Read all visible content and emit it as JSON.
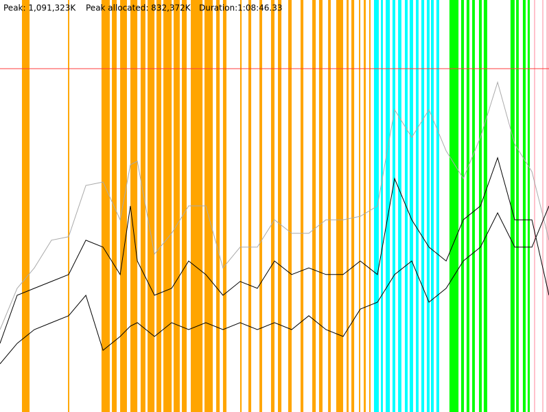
{
  "chart_data": {
    "type": "line",
    "peak_label": "Peak: 1,091,323K",
    "peak_allocated_label": "Peak allocated: 832,372K",
    "duration_label": "Duration:1:08:46.33",
    "peak": 1091323,
    "peak_color": "#ff3b3b",
    "xlim": [
      0,
      4126.33
    ],
    "ylim": [
      0,
      1309588
    ],
    "x": [
      0,
      129,
      258,
      387,
      516,
      645,
      774,
      903,
      980,
      1032,
      1161,
      1290,
      1418,
      1547,
      1676,
      1805,
      1934,
      2063,
      2192,
      2321,
      2450,
      2579,
      2708,
      2837,
      2966,
      3095,
      3224,
      3353,
      3482,
      3611,
      3740,
      3869,
      3998,
      4126.33
    ],
    "series": [
      {
        "color": "#aaaaaa",
        "values": [
          262000,
          393000,
          458000,
          546000,
          557000,
          720000,
          731000,
          611000,
          786000,
          797000,
          502000,
          568000,
          655000,
          655000,
          458000,
          524000,
          524000,
          611000,
          568000,
          568000,
          611000,
          611000,
          622000,
          655000,
          961000,
          873000,
          961000,
          830000,
          742000,
          873000,
          1048000,
          851000,
          764000,
          546000
        ]
      },
      {
        "color": "#000000",
        "values": [
          218000,
          371000,
          393000,
          415000,
          437000,
          546000,
          524000,
          437000,
          655000,
          480000,
          371000,
          393000,
          480000,
          437000,
          371000,
          415000,
          393000,
          480000,
          437000,
          458000,
          437000,
          437000,
          480000,
          437000,
          742000,
          611000,
          524000,
          480000,
          611000,
          655000,
          808000,
          611000,
          611000,
          371000
        ]
      },
      {
        "color": "#000000",
        "values": [
          153000,
          218000,
          262000,
          284000,
          306000,
          371000,
          196000,
          240000,
          273000,
          284000,
          240000,
          284000,
          262000,
          284000,
          262000,
          284000,
          262000,
          284000,
          262000,
          306000,
          262000,
          240000,
          327000,
          349000,
          437000,
          480000,
          349000,
          393000,
          480000,
          524000,
          633000,
          524000,
          524000,
          655000
        ]
      }
    ],
    "bands": [
      {
        "color": "#ffa500",
        "ranges": [
          [
            165,
            222
          ],
          [
            511,
            521
          ],
          [
            763,
            825
          ],
          [
            841,
            877
          ],
          [
            903,
            954
          ],
          [
            980,
            1032
          ],
          [
            1057,
            1093
          ],
          [
            1109,
            1161
          ],
          [
            1176,
            1212
          ],
          [
            1228,
            1290
          ],
          [
            1305,
            1351
          ],
          [
            1367,
            1403
          ],
          [
            1434,
            1522
          ],
          [
            1537,
            1599
          ],
          [
            1625,
            1651
          ],
          [
            1676,
            1702
          ],
          [
            1805,
            1816
          ],
          [
            1867,
            1888
          ],
          [
            1950,
            1970
          ],
          [
            2037,
            2063
          ],
          [
            2089,
            2115
          ],
          [
            2166,
            2192
          ],
          [
            2259,
            2280
          ],
          [
            2347,
            2373
          ],
          [
            2398,
            2424
          ],
          [
            2466,
            2486
          ],
          [
            2527,
            2579
          ],
          [
            2605,
            2620
          ],
          [
            2641,
            2662
          ],
          [
            2698,
            2708
          ],
          [
            2734,
            2749
          ],
          [
            2775,
            2785
          ]
        ]
      },
      {
        "color": "#00ffff",
        "ranges": [
          [
            2811,
            2847
          ],
          [
            2863,
            2878
          ],
          [
            2899,
            2930
          ],
          [
            2950,
            2971
          ],
          [
            2992,
            3017
          ],
          [
            3043,
            3064
          ],
          [
            3079,
            3105
          ],
          [
            3126,
            3146
          ],
          [
            3167,
            3188
          ],
          [
            3208,
            3229
          ],
          [
            3239,
            3260
          ],
          [
            3280,
            3301
          ]
        ]
      },
      {
        "color": "#00ff00",
        "ranges": [
          [
            3378,
            3446
          ],
          [
            3466,
            3487
          ],
          [
            3507,
            3528
          ],
          [
            3549,
            3569
          ],
          [
            3600,
            3621
          ],
          [
            3636,
            3662
          ],
          [
            3837,
            3868
          ],
          [
            3879,
            3899
          ],
          [
            3930,
            3951
          ],
          [
            3966,
            3982
          ]
        ]
      },
      {
        "color": "#ffc0cb",
        "ranges": [
          [
            4013,
            4023
          ],
          [
            4075,
            4085
          ],
          [
            4106,
            4126.33
          ]
        ]
      }
    ]
  }
}
